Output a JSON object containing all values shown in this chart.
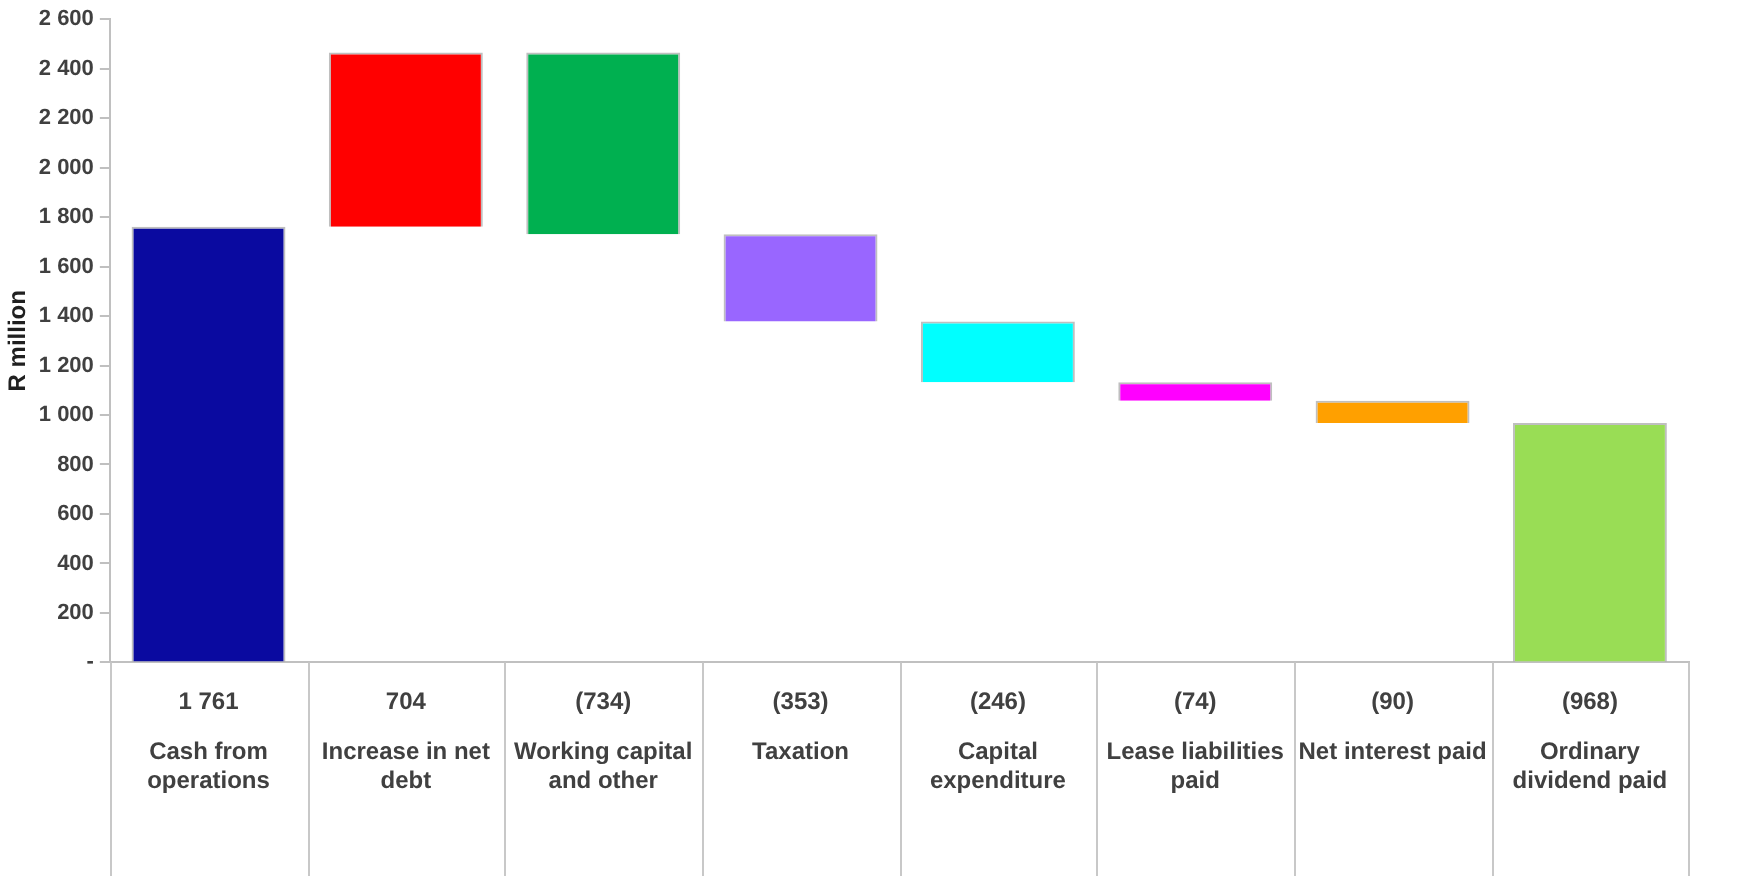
{
  "chart_data": {
    "type": "bar",
    "ylabel": "R million",
    "categories": [
      "Cash from operations",
      "Increase in net debt",
      "Working capital and other",
      "Taxation",
      "Capital expenditure",
      "Lease liabilities paid",
      "Net interest paid",
      "Ordinary dividend paid"
    ],
    "values": [
      1761,
      704,
      -734,
      -353,
      -246,
      -74,
      -90,
      -968
    ],
    "base": [
      0,
      1761,
      2465,
      1731,
      1378,
      1132,
      1058,
      968
    ],
    "colors": [
      "#0a0aa0",
      "#ff0000",
      "#00b050",
      "#9966ff",
      "#00ffff",
      "#ff00ff",
      "#ffa000",
      "#99dd55"
    ],
    "value_labels": [
      "1 761",
      "704",
      "(734)",
      "(353)",
      "(246)",
      "(74)",
      "(90)",
      "(968)"
    ],
    "ylim": [
      0,
      2600
    ],
    "yticks": [
      {
        "value": 0,
        "label": "-"
      },
      200,
      400,
      600,
      800,
      {
        "value": 1000,
        "label": "1 000"
      },
      {
        "value": 1200,
        "label": "1 200"
      },
      {
        "value": 1400,
        "label": "1 400"
      },
      {
        "value": 1600,
        "label": "1 600"
      },
      {
        "value": 1800,
        "label": "1 800"
      },
      {
        "value": 2000,
        "label": "2 000"
      },
      {
        "value": 2200,
        "label": "2 200"
      },
      {
        "value": 2400,
        "label": "2 400"
      },
      {
        "value": 2600,
        "label": "2 600"
      }
    ],
    "grid": false,
    "legend": false
  }
}
